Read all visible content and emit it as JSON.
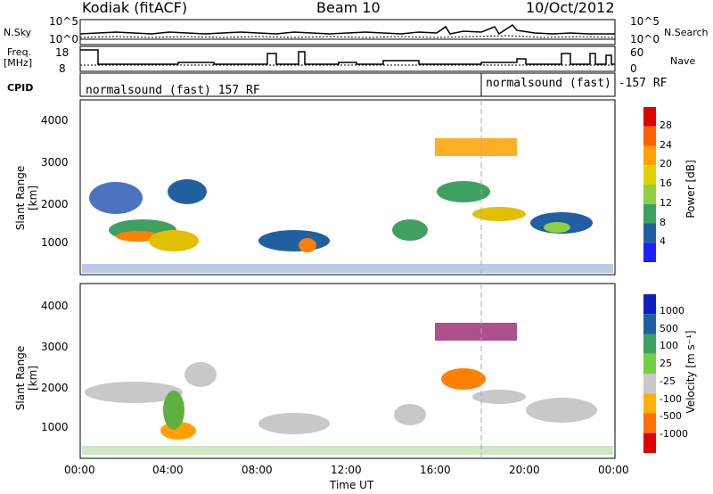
{
  "header": {
    "station": "Kodiak (fitACF)",
    "beam": "Beam 10",
    "date": "10/Oct/2012"
  },
  "left_labels": {
    "nsky": "N.Sky",
    "freq": "Freq.",
    "freq_unit": "[MHz]",
    "cpid": "CPID"
  },
  "right_labels": {
    "nsearch": "N.Search",
    "nave": "Nave"
  },
  "noise_axis": {
    "top": "10^5",
    "bottom": "10^0"
  },
  "freq_axis": {
    "top": "18",
    "bottom": "8"
  },
  "nave_axis": {
    "top": "60",
    "bottom": "0"
  },
  "cpid": {
    "segment1": "normalsound (fast) 157 RF",
    "segment2": "normalsound (fast) -157 RF"
  },
  "range_axis": {
    "label": "Slant Range [km]",
    "ticks": [
      "4000",
      "3000",
      "2000",
      "1000"
    ]
  },
  "time_axis": {
    "label": "Time UT",
    "ticks": [
      "00:00",
      "04:00",
      "08:00",
      "12:00",
      "16:00",
      "20:00",
      "00:00"
    ]
  },
  "power_colorbar": {
    "label": "Power [dB]",
    "ticks": [
      "28",
      "24",
      "20",
      "16",
      "12",
      "8",
      "4"
    ],
    "colors": [
      "#e00000",
      "#ff6000",
      "#ffa000",
      "#e0d000",
      "#90d040",
      "#40a060",
      "#2060a0",
      "#2020ff"
    ]
  },
  "velocity_colorbar": {
    "label": "Velocity [m s⁻¹]",
    "ticks": [
      "1000",
      "500",
      "100",
      "25",
      "-25",
      "-100",
      "-500",
      "-1000"
    ],
    "colors": [
      "#1020c0",
      "#2060a0",
      "#40a060",
      "#70d040",
      "#c8c8c8",
      "#ffb000",
      "#ff7000",
      "#e00000"
    ]
  }
}
